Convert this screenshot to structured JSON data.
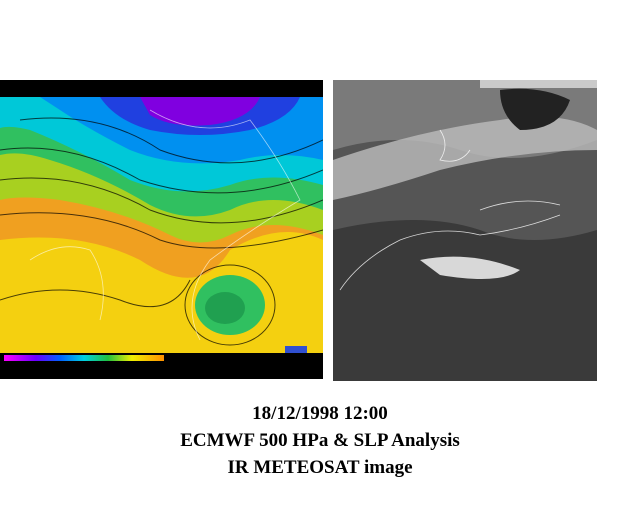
{
  "caption": {
    "lines": [
      "18/12/1998 12:00",
      "ECMWF 500 HPa & SLP Analysis",
      "IR METEOSAT image"
    ]
  }
}
